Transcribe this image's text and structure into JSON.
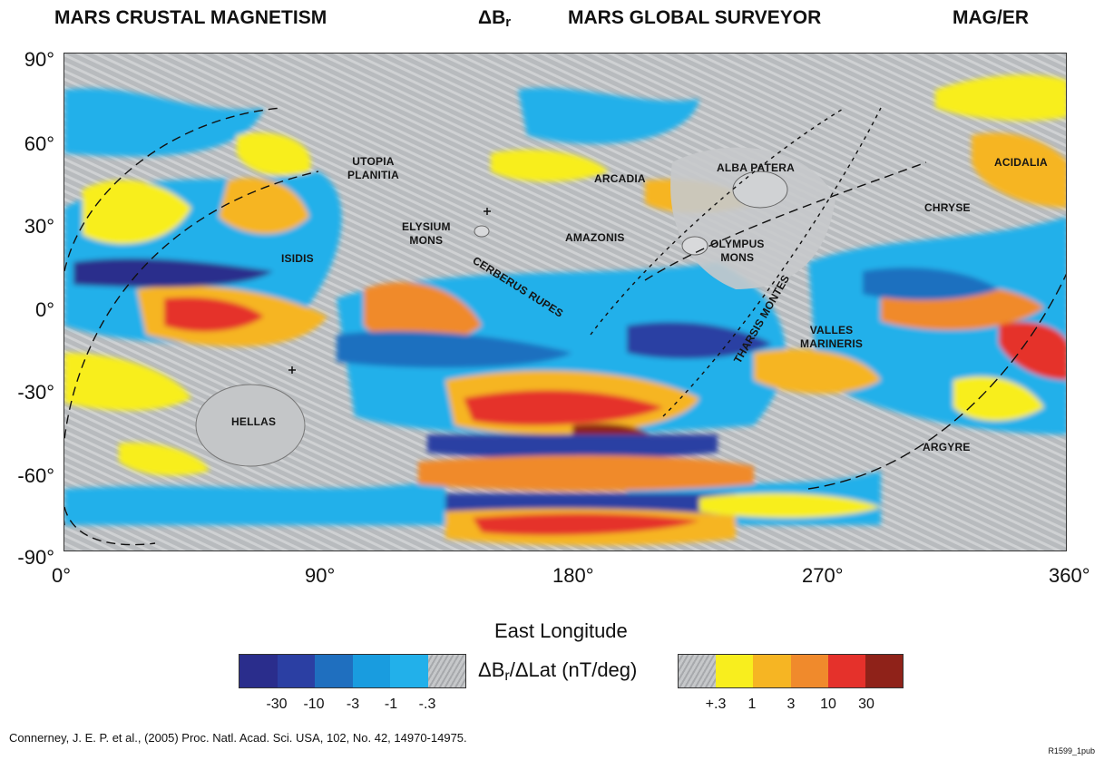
{
  "header": {
    "title_left": "MARS CRUSTAL MAGNETISM",
    "delta_main": "ΔB",
    "delta_sub": "r",
    "title_mid": "MARS GLOBAL SURVEYOR",
    "title_right": "MAG/ER"
  },
  "axes": {
    "y_ticks": [
      "90°",
      "60°",
      "30°",
      "0°",
      "-30°",
      "-60°",
      "-90°"
    ],
    "x_ticks": [
      "0°",
      "90°",
      "180°",
      "270°",
      "360°"
    ],
    "x_title": "East Longitude"
  },
  "places": [
    {
      "label": "UTOPIA\nPLANITIA"
    },
    {
      "label": "ARCADIA"
    },
    {
      "label": "ALBA PATERA"
    },
    {
      "label": "ACIDALIA"
    },
    {
      "label": "CHRYSE"
    },
    {
      "label": "ELYSIUM\nMONS"
    },
    {
      "label": "AMAZONIS"
    },
    {
      "label": "OLYMPUS\nMONS"
    },
    {
      "label": "ISIDIS"
    },
    {
      "label": "CERBERUS RUPES"
    },
    {
      "label": "THARSIS MONTES"
    },
    {
      "label": "VALLES\nMARINERIS"
    },
    {
      "label": "HELLAS"
    },
    {
      "label": "ARGYRE"
    }
  ],
  "colorbar": {
    "title_main": "ΔB",
    "title_sub": "r",
    "title_rest": "/ΔLat (nT/deg)",
    "negative_colors": [
      "#2a2d8c",
      "#2b3fa3",
      "#1f6fbf",
      "#199cdf",
      "#22b0ea"
    ],
    "positive_colors": [
      "#f8ee1e",
      "#f6b523",
      "#f08a2c",
      "#e5312b",
      "#8f2219"
    ],
    "negative_ticks": [
      "-30",
      "-10",
      "-3",
      "-1",
      "-.3"
    ],
    "positive_ticks": [
      "+.3",
      "1",
      "3",
      "10",
      "30"
    ]
  },
  "citation": "Connerney, J. E. P. et al., (2005) Proc. Natl. Acad. Sci. USA, 102, No. 42, 14970-14975.",
  "ref_id": "R1599_1pub"
}
